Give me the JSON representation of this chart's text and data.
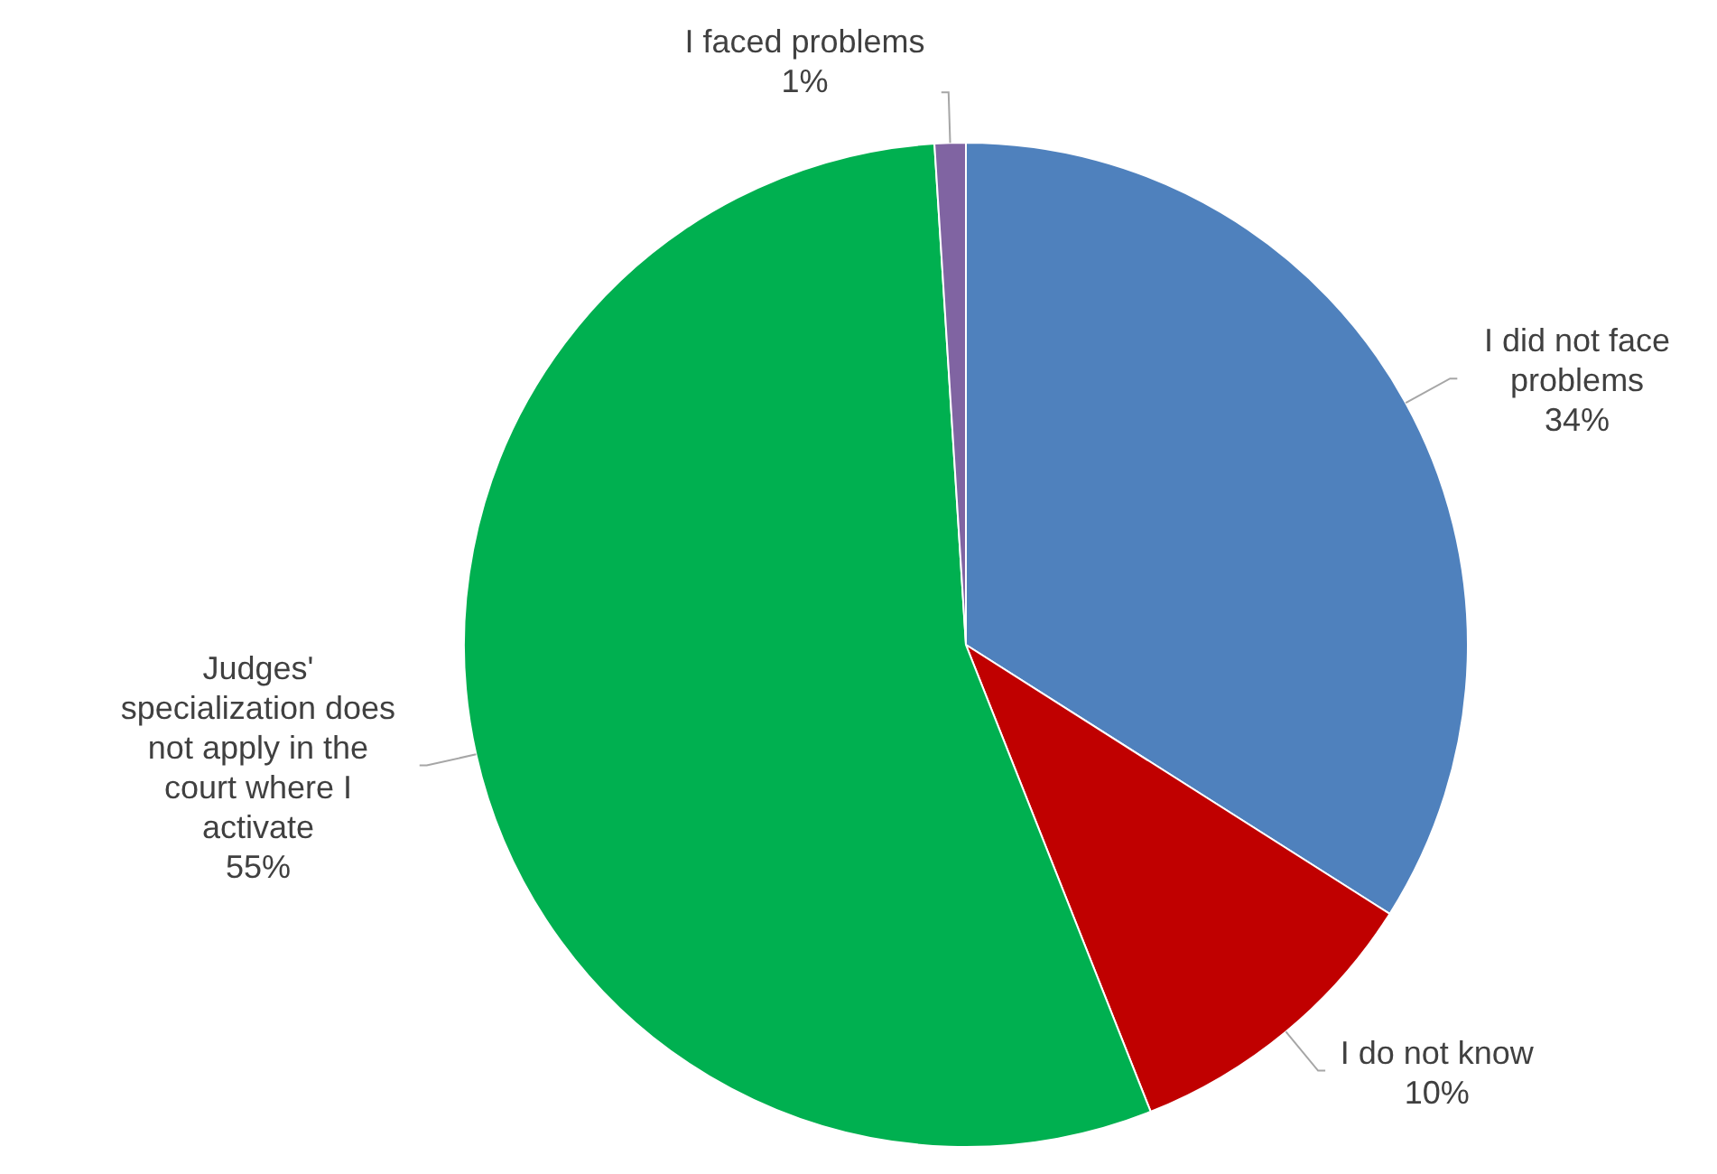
{
  "chart_data": {
    "type": "pie",
    "categories": [
      "I did not face problems",
      "I do not know",
      "Judges' specialization does not apply in the court where I activate",
      "I faced problems"
    ],
    "values": [
      34,
      10,
      55,
      1
    ],
    "value_labels": [
      "34%",
      "10%",
      "55%",
      "1%"
    ],
    "colors": [
      "#4f81bd",
      "#c00000",
      "#00b050",
      "#8064a2"
    ]
  }
}
